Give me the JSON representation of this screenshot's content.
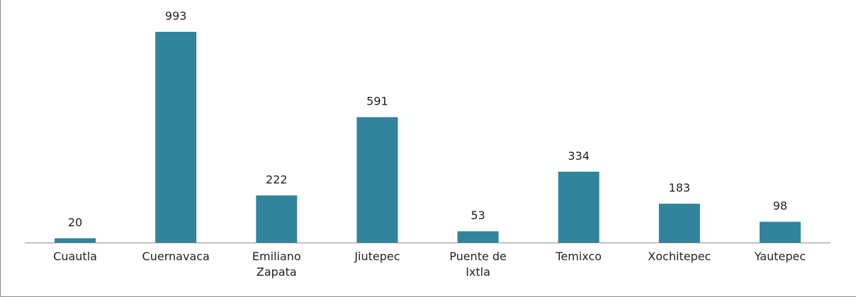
{
  "chart_data": {
    "type": "bar",
    "categories": [
      "Cuautla",
      "Cuernavaca",
      "Emiliano Zapata",
      "Jiutepec",
      "Puente de Ixtla",
      "Temixco",
      "Xochitepec",
      "Yautepec"
    ],
    "values": [
      20,
      993,
      222,
      591,
      53,
      334,
      183,
      98
    ],
    "color": "#31849b"
  }
}
